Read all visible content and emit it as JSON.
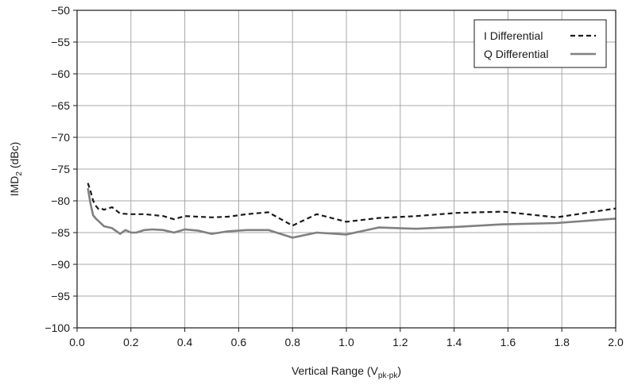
{
  "chart_data": {
    "type": "line",
    "xlabel": {
      "main": "Vertical Range (V",
      "sub": "pk-pk",
      "tail": ")"
    },
    "ylabel": {
      "main": "IMD",
      "sub": "2",
      "tail": " (dBc)"
    },
    "xlim": [
      0.0,
      2.0
    ],
    "ylim": [
      -100,
      -50
    ],
    "x_ticks": [
      "0.0",
      "0.2",
      "0.4",
      "0.6",
      "0.8",
      "1.0",
      "1.2",
      "1.4",
      "1.6",
      "1.8",
      "2.0"
    ],
    "y_ticks": [
      "−50",
      "−55",
      "−60",
      "−65",
      "−70",
      "−75",
      "−80",
      "−85",
      "−90",
      "−95",
      "−100"
    ],
    "x_tick_values": [
      0.0,
      0.2,
      0.4,
      0.6,
      0.8,
      1.0,
      1.2,
      1.4,
      1.6,
      1.8,
      2.0
    ],
    "y_tick_values": [
      -50,
      -55,
      -60,
      -65,
      -70,
      -75,
      -80,
      -85,
      -90,
      -95,
      -100
    ],
    "grid": true,
    "legend_position": "top-right",
    "series": [
      {
        "name": "I Differential",
        "style": "dashed",
        "color": "#1a1a1a",
        "x": [
          0.04,
          0.05,
          0.06,
          0.07,
          0.08,
          0.09,
          0.1,
          0.13,
          0.16,
          0.2,
          0.25,
          0.32,
          0.36,
          0.4,
          0.45,
          0.5,
          0.56,
          0.63,
          0.71,
          0.8,
          0.89,
          1.0,
          1.12,
          1.26,
          1.41,
          1.58,
          1.78,
          2.0
        ],
        "y": [
          -77.2,
          -78.5,
          -80.0,
          -80.8,
          -81.3,
          -81.2,
          -81.4,
          -81.0,
          -82.0,
          -82.1,
          -82.1,
          -82.4,
          -82.9,
          -82.4,
          -82.5,
          -82.6,
          -82.5,
          -82.1,
          -81.8,
          -83.9,
          -82.1,
          -83.3,
          -82.7,
          -82.4,
          -81.9,
          -81.7,
          -82.6,
          -81.2
        ]
      },
      {
        "name": "Q Differential",
        "style": "solid",
        "color": "#808080",
        "x": [
          0.04,
          0.05,
          0.06,
          0.07,
          0.08,
          0.09,
          0.1,
          0.13,
          0.16,
          0.18,
          0.2,
          0.22,
          0.25,
          0.28,
          0.32,
          0.36,
          0.4,
          0.45,
          0.5,
          0.56,
          0.63,
          0.71,
          0.8,
          0.89,
          1.0,
          1.12,
          1.26,
          1.41,
          1.58,
          1.78,
          2.0
        ],
        "y": [
          -78.0,
          -80.5,
          -82.3,
          -82.8,
          -83.2,
          -83.6,
          -84.0,
          -84.3,
          -85.2,
          -84.6,
          -85.0,
          -85.0,
          -84.6,
          -84.5,
          -84.6,
          -85.0,
          -84.5,
          -84.7,
          -85.2,
          -84.8,
          -84.6,
          -84.6,
          -85.8,
          -85.0,
          -85.3,
          -84.2,
          -84.4,
          -84.1,
          -83.7,
          -83.5,
          -82.8
        ]
      }
    ]
  }
}
